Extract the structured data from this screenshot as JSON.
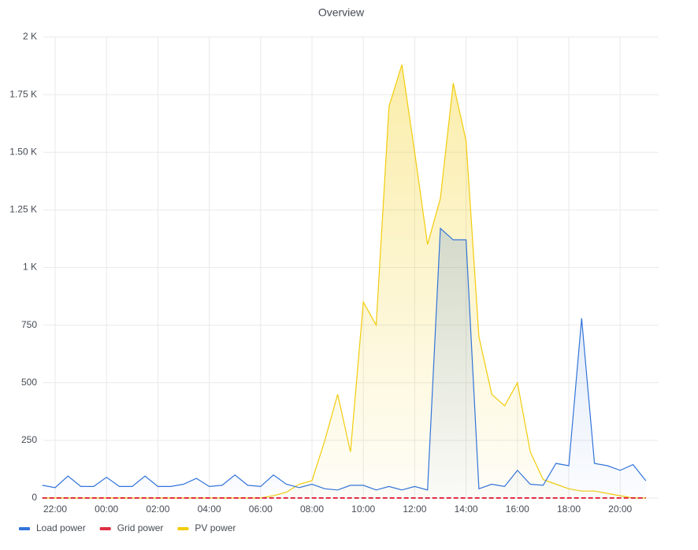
{
  "chart_data": {
    "type": "line",
    "title": "Overview",
    "x": [
      "21:30",
      "22:00",
      "22:30",
      "23:00",
      "23:30",
      "00:00",
      "00:30",
      "01:00",
      "01:30",
      "02:00",
      "02:30",
      "03:00",
      "03:30",
      "04:00",
      "04:30",
      "05:00",
      "05:30",
      "06:00",
      "06:30",
      "07:00",
      "07:30",
      "08:00",
      "08:30",
      "09:00",
      "09:30",
      "10:00",
      "10:30",
      "11:00",
      "11:30",
      "12:00",
      "12:30",
      "13:00",
      "13:30",
      "14:00",
      "14:30",
      "15:00",
      "15:30",
      "16:00",
      "16:30",
      "17:00",
      "17:30",
      "18:00",
      "18:30",
      "19:00",
      "19:30",
      "20:00",
      "20:30",
      "21:00"
    ],
    "series": [
      {
        "name": "Load power",
        "color": "#3274d9",
        "values": [
          55,
          45,
          95,
          50,
          50,
          90,
          50,
          50,
          95,
          50,
          50,
          60,
          85,
          50,
          55,
          100,
          55,
          50,
          100,
          60,
          45,
          60,
          40,
          35,
          55,
          55,
          35,
          50,
          35,
          50,
          35,
          1170,
          1120,
          1120,
          40,
          60,
          50,
          120,
          60,
          55,
          150,
          140,
          780,
          150,
          140,
          120,
          145,
          75
        ]
      },
      {
        "name": "Grid power",
        "color": "#e02f44",
        "values": [
          0,
          0,
          0,
          0,
          0,
          0,
          0,
          0,
          0,
          0,
          0,
          0,
          0,
          0,
          0,
          0,
          0,
          0,
          0,
          0,
          0,
          0,
          0,
          0,
          0,
          0,
          0,
          0,
          0,
          0,
          0,
          0,
          0,
          0,
          0,
          0,
          0,
          0,
          0,
          0,
          0,
          0,
          0,
          0,
          0,
          0,
          0,
          0
        ]
      },
      {
        "name": "PV power",
        "color": "#f2cc0c",
        "values": [
          0,
          0,
          0,
          0,
          0,
          0,
          0,
          0,
          0,
          0,
          0,
          0,
          0,
          0,
          0,
          0,
          0,
          0,
          10,
          25,
          60,
          75,
          250,
          450,
          200,
          850,
          750,
          1700,
          1880,
          1500,
          1100,
          1300,
          1800,
          1550,
          700,
          450,
          400,
          500,
          200,
          80,
          60,
          40,
          30,
          30,
          20,
          10,
          0,
          0
        ]
      }
    ],
    "ylim": [
      0,
      2000
    ],
    "yticks": [
      0,
      250,
      500,
      750,
      {
        "value": 1000,
        "label": "1 K"
      },
      {
        "value": 1250,
        "label": "1.25 K"
      },
      {
        "value": 1500,
        "label": "1.50 K"
      },
      {
        "value": 1750,
        "label": "1.75 K"
      },
      {
        "value": 2000,
        "label": "2 K"
      }
    ],
    "xticks": [
      "22:00",
      "00:00",
      "02:00",
      "04:00",
      "06:00",
      "08:00",
      "10:00",
      "12:00",
      "14:00",
      "16:00",
      "18:00",
      "20:00"
    ],
    "grid": true
  }
}
